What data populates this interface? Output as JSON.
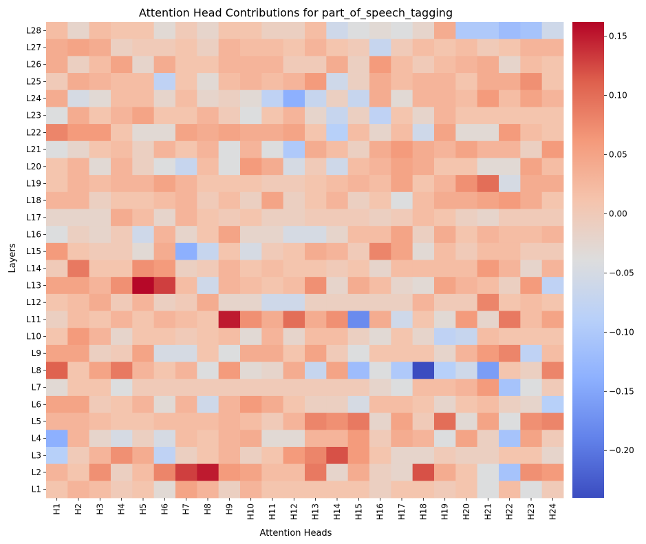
{
  "chart_data": {
    "type": "heatmap",
    "title": "Attention Head Contributions for part_of_speech_tagging",
    "xlabel": "Attention Heads",
    "ylabel": "Layers",
    "x_categories": [
      "H1",
      "H2",
      "H3",
      "H4",
      "H5",
      "H6",
      "H7",
      "H8",
      "H9",
      "H10",
      "H11",
      "H12",
      "H13",
      "H14",
      "H15",
      "H16",
      "H17",
      "H18",
      "H19",
      "H20",
      "H21",
      "H22",
      "H23",
      "H24"
    ],
    "y_categories": [
      "L28",
      "L27",
      "L26",
      "L25",
      "L24",
      "L23",
      "L22",
      "L21",
      "L20",
      "L19",
      "L18",
      "L17",
      "L16",
      "L15",
      "L14",
      "L13",
      "L12",
      "L11",
      "L10",
      "L9",
      "L8",
      "L7",
      "L6",
      "L5",
      "L4",
      "L3",
      "L2",
      "L1"
    ],
    "colormap": "coolwarm",
    "vmin": -0.24,
    "vmax": 0.162,
    "colorbar_ticks": [
      0.15,
      0.1,
      0.05,
      0.0,
      -0.05,
      -0.1,
      -0.15,
      -0.2
    ],
    "colorbar_tick_labels": [
      "0.15",
      "0.10",
      "0.05",
      "0.00",
      "−0.05",
      "−0.10",
      "−0.15",
      "−0.20"
    ],
    "values": [
      [
        0.02,
        -0.02,
        0.02,
        0.01,
        0.01,
        -0.03,
        0.0,
        -0.02,
        0.01,
        0.01,
        -0.01,
        -0.01,
        0.02,
        -0.06,
        -0.04,
        -0.03,
        -0.04,
        -0.02,
        0.04,
        -0.1,
        -0.1,
        -0.12,
        -0.11,
        -0.06
      ],
      [
        0.04,
        0.05,
        0.04,
        -0.01,
        0.0,
        0.0,
        0.01,
        -0.01,
        0.03,
        0.02,
        0.02,
        0.01,
        0.03,
        0.01,
        0.0,
        -0.07,
        0.0,
        0.02,
        0.01,
        0.02,
        0.0,
        0.01,
        0.03,
        0.03
      ],
      [
        0.04,
        -0.01,
        0.02,
        0.05,
        -0.02,
        0.04,
        0.01,
        0.01,
        0.03,
        0.03,
        0.03,
        0.0,
        0.0,
        0.04,
        -0.01,
        0.06,
        0.02,
        0.0,
        0.02,
        0.03,
        0.04,
        -0.02,
        0.02,
        0.01
      ],
      [
        0.0,
        0.04,
        0.03,
        0.02,
        0.02,
        -0.08,
        0.01,
        -0.03,
        0.02,
        0.03,
        0.02,
        0.03,
        0.06,
        -0.06,
        -0.01,
        0.04,
        0.02,
        0.03,
        0.03,
        0.01,
        0.04,
        0.04,
        0.07,
        0.01
      ],
      [
        0.04,
        -0.05,
        -0.03,
        0.02,
        0.02,
        -0.02,
        0.02,
        -0.02,
        -0.01,
        -0.03,
        -0.08,
        -0.14,
        -0.07,
        -0.01,
        -0.07,
        0.04,
        -0.03,
        0.03,
        0.03,
        0.02,
        0.06,
        0.02,
        0.05,
        0.03
      ],
      [
        -0.04,
        0.04,
        0.01,
        0.03,
        0.05,
        0.01,
        0.01,
        0.03,
        0.0,
        -0.04,
        0.01,
        0.03,
        -0.02,
        -0.07,
        -0.01,
        -0.08,
        0.01,
        -0.02,
        0.03,
        0.01,
        0.01,
        0.01,
        0.01,
        0.01
      ],
      [
        0.08,
        0.06,
        0.06,
        0.01,
        -0.03,
        -0.03,
        0.05,
        0.04,
        0.05,
        0.04,
        0.04,
        0.05,
        0.01,
        -0.09,
        0.02,
        -0.02,
        0.02,
        -0.06,
        0.05,
        -0.03,
        -0.03,
        0.06,
        0.02,
        0.01
      ],
      [
        -0.04,
        -0.02,
        0.01,
        0.02,
        -0.01,
        0.03,
        0.01,
        0.03,
        -0.04,
        0.03,
        -0.04,
        -0.1,
        0.04,
        0.02,
        -0.01,
        0.04,
        0.06,
        0.04,
        0.03,
        0.05,
        0.03,
        0.03,
        -0.01,
        0.06
      ],
      [
        0.01,
        0.03,
        -0.03,
        0.03,
        -0.01,
        -0.04,
        -0.07,
        0.02,
        -0.04,
        0.06,
        0.04,
        -0.05,
        0.0,
        -0.06,
        0.02,
        0.03,
        0.05,
        0.04,
        0.01,
        0.01,
        -0.03,
        -0.03,
        0.05,
        0.02
      ],
      [
        0.01,
        0.03,
        0.02,
        0.03,
        0.03,
        0.05,
        0.03,
        0.01,
        0.01,
        0.01,
        0.0,
        0.0,
        0.01,
        0.02,
        0.03,
        0.02,
        0.05,
        0.01,
        0.03,
        0.07,
        0.1,
        -0.05,
        0.04,
        0.04
      ],
      [
        0.03,
        0.03,
        -0.01,
        0.01,
        0.01,
        0.02,
        0.03,
        0.0,
        0.02,
        -0.01,
        0.05,
        -0.01,
        0.01,
        0.03,
        -0.01,
        0.01,
        -0.04,
        0.02,
        0.04,
        0.04,
        0.05,
        0.06,
        0.04,
        0.01
      ],
      [
        -0.02,
        -0.02,
        -0.02,
        0.04,
        0.02,
        -0.02,
        0.03,
        0.01,
        0.0,
        0.01,
        -0.01,
        -0.01,
        0.0,
        0.0,
        0.0,
        -0.01,
        0.0,
        0.02,
        0.01,
        -0.01,
        -0.02,
        0.0,
        0.0,
        0.0
      ],
      [
        -0.04,
        -0.01,
        -0.02,
        0.0,
        -0.06,
        0.03,
        -0.02,
        0.01,
        0.05,
        -0.02,
        -0.02,
        -0.05,
        -0.05,
        -0.02,
        0.02,
        0.02,
        0.05,
        -0.01,
        0.04,
        0.01,
        0.03,
        0.02,
        0.02,
        0.03
      ],
      [
        0.06,
        0.01,
        0.0,
        0.0,
        -0.03,
        0.04,
        -0.14,
        -0.07,
        0.01,
        -0.05,
        0.0,
        0.01,
        0.04,
        0.03,
        0.0,
        0.08,
        0.05,
        -0.03,
        0.02,
        0.0,
        0.02,
        0.02,
        0.0,
        0.0
      ],
      [
        0.0,
        0.09,
        0.01,
        0.01,
        0.07,
        0.06,
        -0.01,
        0.0,
        0.03,
        0.01,
        0.02,
        0.01,
        0.01,
        0.0,
        0.01,
        -0.02,
        0.02,
        0.02,
        0.02,
        0.02,
        0.06,
        0.03,
        -0.02,
        0.03
      ],
      [
        0.05,
        0.05,
        0.03,
        0.07,
        0.16,
        0.13,
        0.02,
        -0.06,
        0.03,
        0.02,
        0.01,
        0.02,
        0.07,
        -0.02,
        0.04,
        0.02,
        -0.02,
        -0.03,
        0.05,
        0.03,
        0.02,
        -0.01,
        0.06,
        -0.08
      ],
      [
        0.01,
        0.02,
        0.04,
        0.0,
        0.03,
        -0.01,
        0.0,
        0.04,
        -0.02,
        -0.02,
        -0.06,
        -0.06,
        -0.01,
        -0.01,
        -0.01,
        -0.01,
        -0.01,
        0.03,
        0.0,
        0.0,
        0.08,
        0.01,
        0.02,
        0.01
      ],
      [
        -0.01,
        0.02,
        0.01,
        0.03,
        0.01,
        0.03,
        0.02,
        0.01,
        0.15,
        0.07,
        0.04,
        0.1,
        0.04,
        0.07,
        -0.18,
        0.04,
        -0.06,
        0.01,
        -0.03,
        0.06,
        -0.02,
        0.09,
        0.02,
        0.05
      ],
      [
        0.01,
        0.06,
        0.03,
        -0.02,
        0.01,
        0.01,
        0.0,
        0.01,
        0.02,
        -0.03,
        0.03,
        -0.02,
        0.02,
        0.02,
        -0.01,
        -0.03,
        0.01,
        -0.02,
        -0.08,
        -0.07,
        0.02,
        0.01,
        0.01,
        0.01
      ],
      [
        0.05,
        0.05,
        -0.01,
        0.0,
        0.05,
        -0.05,
        -0.05,
        0.01,
        -0.04,
        0.04,
        0.04,
        0.01,
        0.05,
        0.0,
        -0.04,
        0.01,
        0.01,
        0.01,
        -0.02,
        0.03,
        0.06,
        0.08,
        -0.08,
        0.02
      ],
      [
        0.11,
        0.01,
        0.05,
        0.09,
        0.03,
        0.01,
        0.03,
        -0.04,
        0.06,
        -0.03,
        -0.02,
        0.04,
        -0.07,
        0.05,
        -0.12,
        -0.04,
        -0.1,
        -0.24,
        -0.09,
        -0.06,
        -0.16,
        0.01,
        -0.01,
        0.08
      ],
      [
        -0.03,
        0.01,
        0.01,
        -0.04,
        0.0,
        0.0,
        0.0,
        0.0,
        0.0,
        0.0,
        0.0,
        0.0,
        0.0,
        0.0,
        0.0,
        -0.02,
        -0.04,
        0.02,
        0.02,
        0.03,
        0.06,
        -0.11,
        -0.04,
        0.0
      ],
      [
        0.05,
        0.05,
        0.0,
        0.01,
        0.03,
        -0.03,
        0.03,
        -0.06,
        0.03,
        0.06,
        0.04,
        0.01,
        -0.01,
        -0.01,
        -0.05,
        0.02,
        0.02,
        0.01,
        -0.02,
        0.01,
        0.02,
        -0.01,
        -0.02,
        -0.09
      ],
      [
        0.03,
        0.03,
        0.02,
        0.01,
        0.01,
        0.02,
        0.02,
        0.02,
        0.03,
        0.02,
        0.0,
        0.03,
        0.08,
        0.07,
        0.09,
        -0.02,
        0.05,
        0.0,
        0.1,
        -0.03,
        0.05,
        -0.04,
        0.07,
        0.08
      ],
      [
        -0.14,
        0.03,
        -0.02,
        -0.05,
        -0.01,
        -0.05,
        0.02,
        0.01,
        0.03,
        0.04,
        -0.03,
        -0.03,
        0.03,
        0.03,
        0.06,
        0.0,
        0.04,
        0.03,
        -0.04,
        0.05,
        -0.01,
        -0.11,
        0.05,
        0.0
      ],
      [
        -0.09,
        0.0,
        0.03,
        0.07,
        0.04,
        -0.08,
        -0.01,
        0.01,
        0.03,
        -0.01,
        0.01,
        0.06,
        0.08,
        0.12,
        0.06,
        0.01,
        -0.02,
        -0.02,
        0.0,
        -0.01,
        -0.01,
        0.01,
        0.01,
        -0.02
      ],
      [
        0.03,
        0.01,
        0.07,
        -0.01,
        0.02,
        0.08,
        0.13,
        0.15,
        0.06,
        0.05,
        0.02,
        0.02,
        0.09,
        -0.02,
        0.04,
        -0.01,
        -0.02,
        0.12,
        0.04,
        0.01,
        -0.04,
        -0.11,
        0.07,
        0.06
      ],
      [
        0.01,
        0.03,
        0.02,
        0.0,
        0.01,
        -0.03,
        0.05,
        0.03,
        -0.01,
        0.03,
        0.01,
        0.01,
        0.01,
        0.01,
        0.01,
        -0.01,
        0.01,
        0.01,
        0.0,
        0.01,
        -0.04,
        0.02,
        -0.04,
        0.0
      ]
    ]
  }
}
